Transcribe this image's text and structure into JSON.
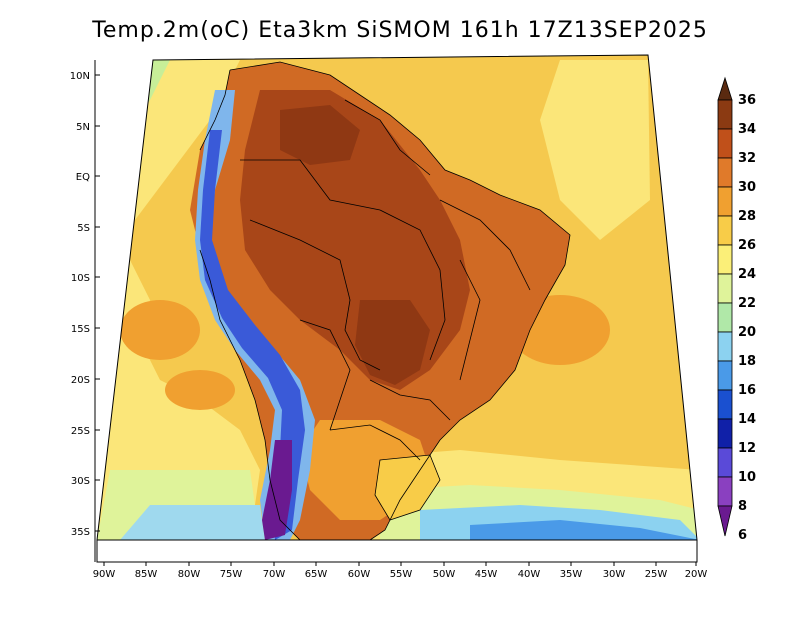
{
  "title": "Temp.2m(oC) Eta3km SiSMOM 161h 17Z13SEP2025",
  "map": {
    "lat_labels": [
      "10N",
      "5N",
      "EQ",
      "5S",
      "10S",
      "15S",
      "20S",
      "25S",
      "30S",
      "35S"
    ],
    "lon_labels": [
      "90W",
      "85W",
      "80W",
      "75W",
      "70W",
      "65W",
      "60W",
      "55W",
      "50W",
      "45W",
      "40W",
      "35W",
      "30W",
      "25W",
      "20W"
    ]
  },
  "colorbar": {
    "labels": [
      "36",
      "34",
      "32",
      "30",
      "28",
      "26",
      "24",
      "22",
      "20",
      "18",
      "16",
      "14",
      "12",
      "10",
      "8",
      "6"
    ],
    "colors": [
      "#5a2a10",
      "#8b3a12",
      "#c0501a",
      "#e07a2a",
      "#f0a030",
      "#f8cc48",
      "#fbef78",
      "#dff39a",
      "#b0e8a8",
      "#8cd2f0",
      "#4a9ae8",
      "#1a50d0",
      "#1020a8",
      "#5a4ad8",
      "#8a40c0",
      "#6a1a90"
    ]
  },
  "palette": {
    "ocean_warm": "#f6cf52",
    "ocean_cool": "#fbe679",
    "land_hot": "#c25a1e",
    "land_very_hot": "#8f3813",
    "andes_cold": "#3a5ad8",
    "andes_very_cold": "#6a1a90"
  }
}
